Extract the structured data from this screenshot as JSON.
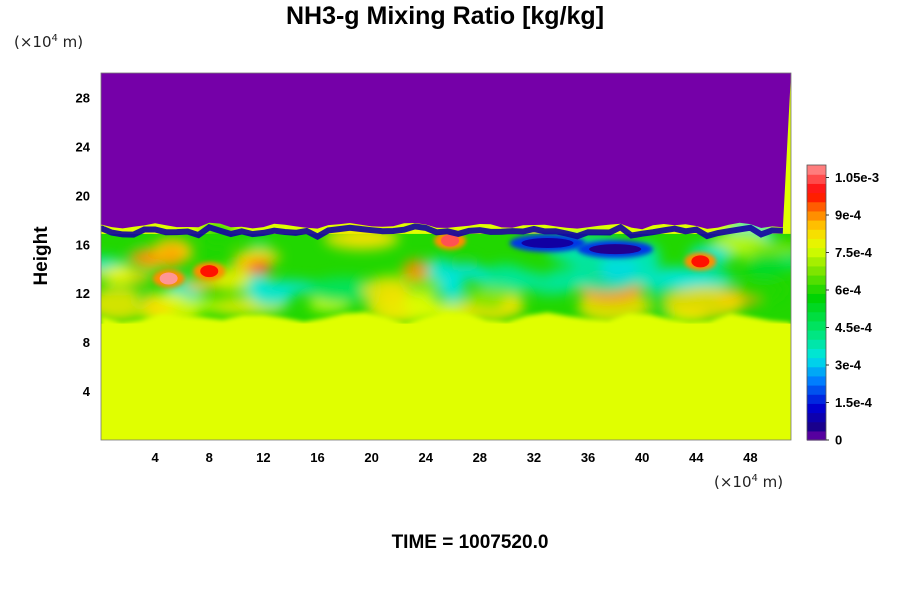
{
  "chart_data": {
    "type": "heatmap",
    "title": "NH3-g Mixing Ratio [kg/kg]",
    "xlabel": "",
    "ylabel": "Height",
    "x_unit": {
      "prefix": "(×10",
      "exponent": "4",
      "suffix": " m)"
    },
    "y_unit": {
      "prefix": "(×10",
      "exponent": "4",
      "suffix": " m)"
    },
    "x_ticks": [
      "4",
      "8",
      "12",
      "16",
      "20",
      "24",
      "28",
      "32",
      "36",
      "40",
      "44",
      "48"
    ],
    "y_ticks": [
      "4",
      "8",
      "12",
      "16",
      "20",
      "24",
      "28"
    ],
    "xlim": [
      0,
      51
    ],
    "ylim": [
      0,
      30
    ],
    "colorbar": {
      "range": [
        0,
        0.0011
      ],
      "tick_labels": [
        "0",
        "1.5e-4",
        "3e-4",
        "4.5e-4",
        "6e-4",
        "7.5e-4",
        "9e-4",
        "1.05e-3"
      ],
      "tick_values": [
        0,
        0.00015,
        0.0003,
        0.00045,
        0.0006,
        0.00075,
        0.0009,
        0.00105
      ]
    },
    "field": {
      "upper_layer": {
        "y_range": [
          17.5,
          30
        ],
        "value": 0
      },
      "lower_layer": {
        "y_range": [
          0,
          10
        ],
        "value": 0.00077
      },
      "mixed_layer": {
        "y_range": [
          10,
          17.5
        ],
        "approx_values": [
          0.00045,
          0.0006,
          0.0009,
          0.00105
        ]
      },
      "features": [
        {
          "name": "peak",
          "x": 5,
          "y": 13.2,
          "value": 0.0011
        },
        {
          "name": "peak",
          "x": 8,
          "y": 13.8,
          "value": 0.00098
        },
        {
          "name": "peak",
          "x": 25.8,
          "y": 16.3,
          "value": 0.00105
        },
        {
          "name": "peak",
          "x": 44.3,
          "y": 14.6,
          "value": 0.00098
        },
        {
          "name": "depleted",
          "x": 33,
          "y": 16.1,
          "value": 8e-05
        },
        {
          "name": "depleted",
          "x": 38,
          "y": 15.6,
          "value": 5e-05
        }
      ]
    }
  },
  "footer": {
    "label": "TIME = 1007520.0"
  }
}
